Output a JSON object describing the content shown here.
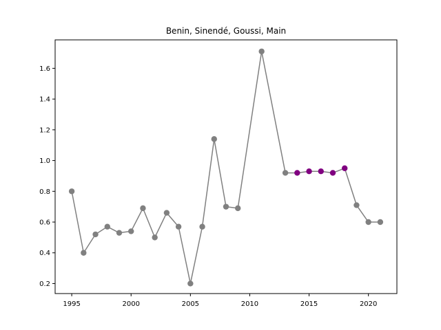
{
  "chart_data": {
    "type": "line",
    "title": "Benin, Sinendé, Goussi, Main",
    "xlabel": "",
    "ylabel": "",
    "xlim": [
      1993.6,
      2022.4
    ],
    "ylim": [
      0.135,
      1.785
    ],
    "x_ticks": [
      1995,
      2000,
      2005,
      2010,
      2015,
      2020
    ],
    "y_ticks": [
      0.2,
      0.4,
      0.6,
      0.8,
      1.0,
      1.2,
      1.4,
      1.6
    ],
    "grid": false,
    "line_color": "#808080",
    "series": [
      {
        "x": [
          1995,
          1996,
          1997,
          1998,
          1999,
          2000,
          2001,
          2002,
          2003,
          2004,
          2005,
          2006,
          2007,
          2008,
          2009,
          2011,
          2013,
          2014,
          2015,
          2016,
          2017,
          2018,
          2019,
          2020,
          2021
        ],
        "values": [
          0.8,
          0.4,
          0.52,
          0.57,
          0.53,
          0.54,
          0.69,
          0.5,
          0.66,
          0.57,
          0.2,
          0.57,
          1.14,
          0.7,
          0.69,
          1.71,
          0.92,
          0.92,
          0.93,
          0.93,
          0.92,
          0.95,
          0.71,
          0.6,
          0.6
        ],
        "marker_colors": [
          "#808080",
          "#808080",
          "#808080",
          "#808080",
          "#808080",
          "#808080",
          "#808080",
          "#808080",
          "#808080",
          "#808080",
          "#808080",
          "#808080",
          "#808080",
          "#808080",
          "#808080",
          "#808080",
          "#808080",
          "#800080",
          "#800080",
          "#800080",
          "#800080",
          "#800080",
          "#808080",
          "#808080",
          "#808080"
        ]
      }
    ]
  }
}
